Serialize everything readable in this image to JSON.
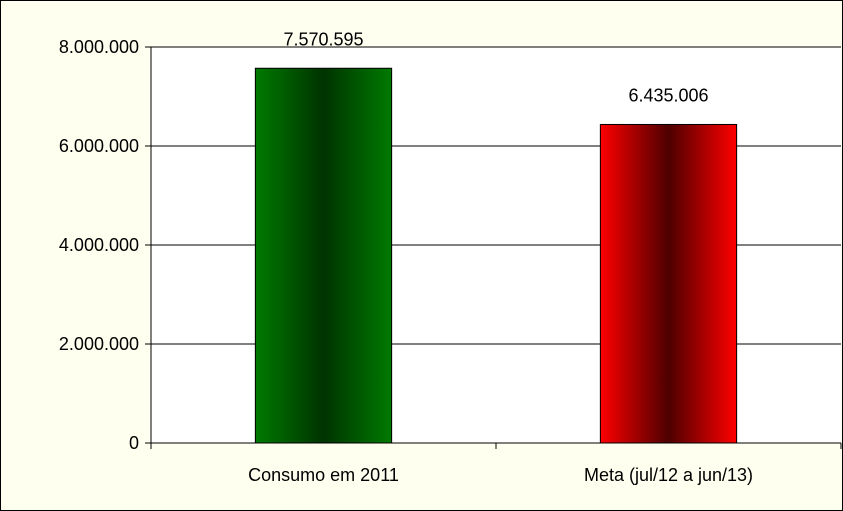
{
  "chart_data": {
    "type": "bar",
    "categories": [
      "Consumo em 2011",
      "Meta (jul/12 a jun/13)"
    ],
    "values": [
      7570595,
      6435006
    ],
    "value_labels": [
      "7.570.595",
      "6.435.006"
    ],
    "ylim": [
      0,
      8000000
    ],
    "yticks": [
      0,
      2000000,
      4000000,
      6000000,
      8000000
    ],
    "ytick_labels": [
      "0",
      "2.000.000",
      "4.000.000",
      "6.000.000",
      "8.000.000"
    ],
    "grid": true,
    "legend": "none",
    "colors": {
      "frame_background": "#fffff0",
      "plot_background": "#ffffff",
      "gridline": "#000000",
      "bars": [
        {
          "edge": "#007a00",
          "center": "#003300"
        },
        {
          "edge": "#ff0000",
          "center": "#4d0000"
        }
      ]
    }
  }
}
